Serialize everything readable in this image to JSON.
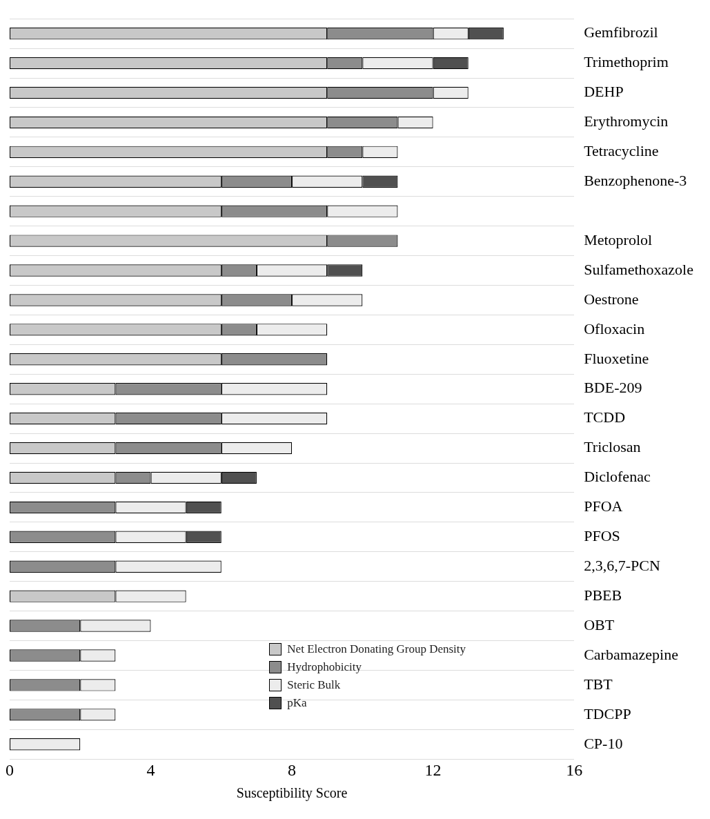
{
  "chart_data": {
    "type": "bar",
    "orientation": "horizontal",
    "stacked": true,
    "xlabel": "Susceptibility Score",
    "xlim": [
      0,
      16
    ],
    "xticks": [
      0,
      4,
      8,
      12,
      16
    ],
    "grid": "y",
    "legend": "bottom",
    "categories": [
      "Gemfibrozil",
      "Trimethoprim",
      "DEHP",
      "Erythromycin",
      "Tetracycline",
      "Benzophenone-3",
      null,
      "Metoprolol",
      "Sulfamethoxazole",
      "Oestrone",
      "Ofloxacin",
      "Fluoxetine",
      "BDE-209",
      "TCDD",
      "Triclosan",
      "Diclofenac",
      "PFOA",
      "PFOS",
      "2,3,6,7-PCN",
      "PBEB",
      "OBT",
      "Carbamazepine",
      "TBT",
      "TDCPP",
      "CP-10"
    ],
    "series": [
      {
        "name": "Net Electron Donating Group Density",
        "color": "#c8c8c8",
        "values": [
          9,
          9,
          9,
          9,
          9,
          6,
          6,
          9,
          6,
          6,
          6,
          6,
          3,
          3,
          3,
          3,
          0,
          0,
          0,
          3,
          0,
          0,
          0,
          0,
          0
        ]
      },
      {
        "name": "Hydrophobicity",
        "color": "#8c8c8c",
        "values": [
          3,
          1,
          3,
          2,
          1,
          2,
          3,
          2,
          1,
          2,
          1,
          3,
          3,
          3,
          3,
          1,
          3,
          3,
          3,
          0,
          2,
          2,
          2,
          2,
          0
        ]
      },
      {
        "name": "Steric Bulk",
        "color": "#ececec",
        "values": [
          1,
          2,
          1,
          1,
          1,
          2,
          2,
          0,
          2,
          2,
          2,
          0,
          3,
          3,
          2,
          2,
          2,
          2,
          3,
          2,
          2,
          1,
          1,
          1,
          2
        ]
      },
      {
        "name": "pKa",
        "color": "#505050",
        "values": [
          1,
          1,
          0,
          0,
          0,
          1,
          0,
          0,
          1,
          0,
          0,
          0,
          0,
          0,
          0,
          1,
          1,
          1,
          0,
          0,
          0,
          0,
          0,
          0,
          0
        ]
      }
    ]
  }
}
